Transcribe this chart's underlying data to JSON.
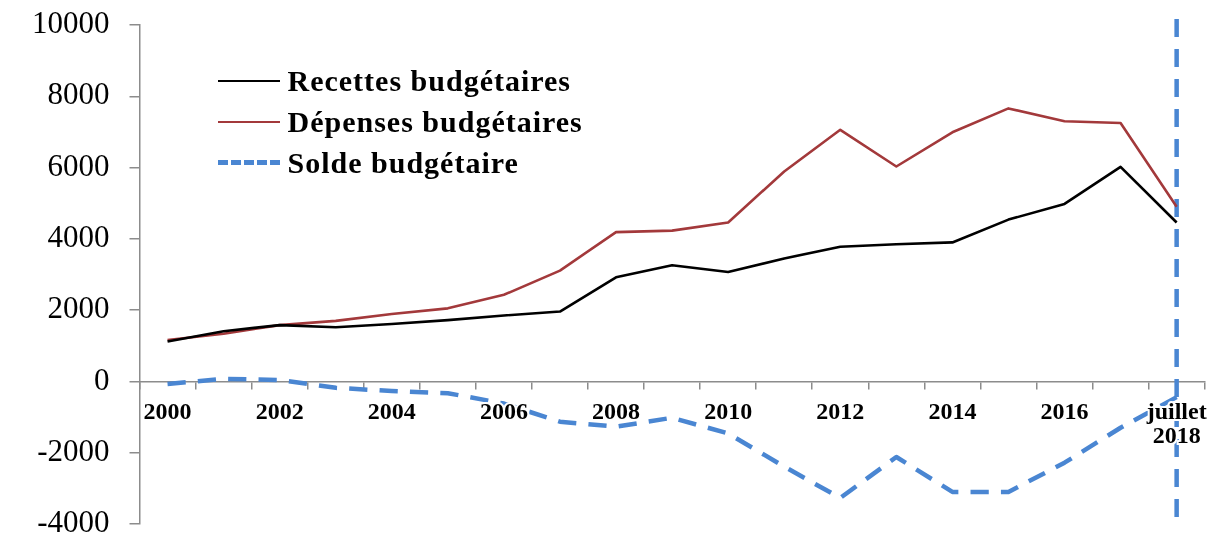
{
  "chart_data": {
    "type": "line",
    "categories": [
      "2000",
      null,
      "2002",
      null,
      "2004",
      null,
      "2006",
      null,
      "2008",
      null,
      "2010",
      null,
      "2012",
      null,
      "2014",
      null,
      "2016",
      null,
      "juillet 2018"
    ],
    "series": [
      {
        "name": "Recettes budgétaires",
        "color": "#000000",
        "values": [
          1120,
          1410,
          1580,
          1520,
          1610,
          1720,
          1850,
          1960,
          2920,
          3260,
          3070,
          3450,
          3780,
          3850,
          3900,
          4540,
          4980,
          6020,
          4460
        ]
      },
      {
        "name": "Dépenses budgétaires",
        "color": "#a3393b",
        "values": [
          1160,
          1340,
          1580,
          1700,
          1890,
          2050,
          2430,
          3110,
          4190,
          4230,
          4460,
          5890,
          7060,
          6030,
          6990,
          7660,
          7300,
          7250,
          4900
        ]
      },
      {
        "name": "Solde budgétaire",
        "color": "#4a86d2",
        "line_style": "dashed",
        "values": [
          -70,
          70,
          40,
          -180,
          -270,
          -330,
          -620,
          -1130,
          -1270,
          -1020,
          -1460,
          -2390,
          -3270,
          -2120,
          -3100,
          -3100,
          -2280,
          -1300,
          -440
        ]
      }
    ],
    "ylim": [
      -4000,
      10000
    ],
    "yticks": [
      -4000,
      -2000,
      0,
      2000,
      4000,
      6000,
      8000,
      10000
    ],
    "grid": false,
    "legend": "top left",
    "marker": "none",
    "ref_lines": [
      {
        "axis": "x",
        "value": "juillet 2018",
        "color": "#4a86d2",
        "line_style": "dashed"
      }
    ]
  }
}
